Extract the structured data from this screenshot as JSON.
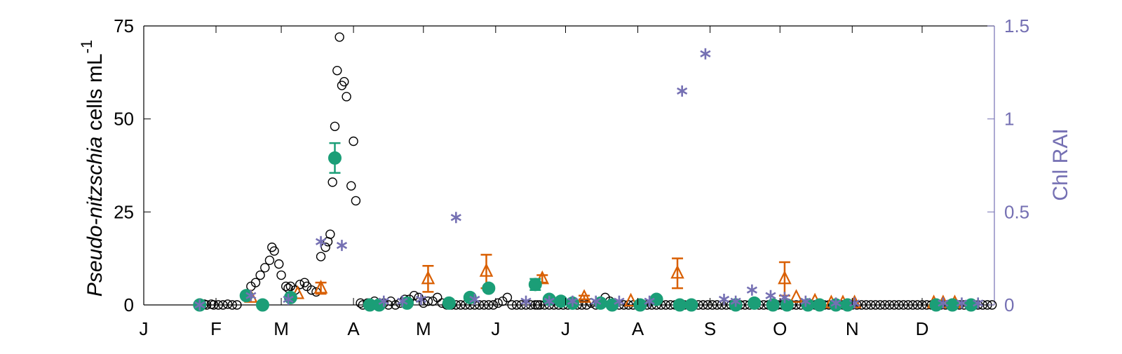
{
  "chart_data": {
    "type": "scatter",
    "title": "",
    "x_tick_labels": [
      "J",
      "F",
      "M",
      "A",
      "M",
      "J",
      "J",
      "A",
      "S",
      "O",
      "N",
      "D"
    ],
    "ylabel_left_italic": "Pseudo-nitzschia",
    "ylabel_left_rest": " cells mL",
    "ylabel_left_superscript": "-1",
    "ylabel_right": "Chl RAI",
    "y_left": {
      "lim": [
        0,
        75
      ],
      "ticks": [
        0,
        25,
        50,
        75
      ],
      "tick_labels": [
        "0",
        "25",
        "50",
        "75"
      ]
    },
    "y_right": {
      "lim": [
        0,
        1.5
      ],
      "ticks": [
        0,
        0.5,
        1,
        1.5
      ],
      "tick_labels": [
        "0",
        "0.5",
        "1",
        "1.5"
      ]
    },
    "x_lim_day_of_year": [
      1,
      366
    ],
    "grid": false,
    "colors": {
      "open_circles": "#000000",
      "triangles": "#d95f02",
      "filled_circles": "#1b9e77",
      "asterisks": "#7570b3",
      "axis_right": "#7570b3",
      "axis_left": "#000000"
    },
    "series": [
      {
        "marker": "open-circle",
        "axis": "left",
        "points": [
          [
            25,
            0.5
          ],
          [
            27,
            0.2
          ],
          [
            28,
            0
          ],
          [
            30,
            0.2
          ],
          [
            31,
            0
          ],
          [
            33,
            0
          ],
          [
            35,
            0
          ],
          [
            37,
            0.2
          ],
          [
            39,
            0
          ],
          [
            41,
            0
          ],
          [
            45,
            3
          ],
          [
            47,
            5
          ],
          [
            49,
            6
          ],
          [
            51,
            8
          ],
          [
            53,
            10
          ],
          [
            55,
            12
          ],
          [
            56,
            15.5
          ],
          [
            57,
            14.5
          ],
          [
            59,
            11
          ],
          [
            60,
            8
          ],
          [
            62,
            5
          ],
          [
            63,
            4.5
          ],
          [
            64,
            5
          ],
          [
            66,
            4
          ],
          [
            68,
            5.5
          ],
          [
            70,
            6
          ],
          [
            71,
            5
          ],
          [
            73,
            4
          ],
          [
            75,
            3.5
          ],
          [
            77,
            13
          ],
          [
            79,
            15.5
          ],
          [
            80,
            17
          ],
          [
            81,
            19
          ],
          [
            82,
            33
          ],
          [
            83,
            48
          ],
          [
            84,
            63
          ],
          [
            85,
            72
          ],
          [
            86,
            59
          ],
          [
            87,
            60
          ],
          [
            88,
            56
          ],
          [
            90,
            32
          ],
          [
            91,
            44
          ],
          [
            92,
            28
          ],
          [
            94,
            0.5
          ],
          [
            95,
            0
          ],
          [
            97,
            0.5
          ],
          [
            99,
            0
          ],
          [
            100,
            1
          ],
          [
            102,
            0
          ],
          [
            104,
            0.5
          ],
          [
            106,
            0
          ],
          [
            107,
            1
          ],
          [
            109,
            0
          ],
          [
            111,
            0.5
          ],
          [
            113,
            1.5
          ],
          [
            115,
            1.5
          ],
          [
            117,
            2.5
          ],
          [
            119,
            2
          ],
          [
            121,
            0.5
          ],
          [
            123,
            1
          ],
          [
            125,
            1
          ],
          [
            127,
            2
          ],
          [
            129,
            0.5
          ],
          [
            131,
            0
          ],
          [
            133,
            0
          ],
          [
            135,
            0
          ],
          [
            137,
            0
          ],
          [
            139,
            0
          ],
          [
            141,
            0
          ],
          [
            143,
            0
          ],
          [
            145,
            0
          ],
          [
            147,
            0
          ],
          [
            149,
            0
          ],
          [
            151,
            0
          ],
          [
            153,
            0.5
          ],
          [
            155,
            1
          ],
          [
            157,
            2
          ],
          [
            159,
            0
          ],
          [
            161,
            0
          ],
          [
            163,
            0
          ],
          [
            165,
            0
          ],
          [
            167,
            0
          ],
          [
            169,
            0
          ],
          [
            170,
            0
          ],
          [
            171,
            0
          ],
          [
            173,
            0
          ],
          [
            175,
            0
          ],
          [
            177,
            0
          ],
          [
            179,
            0
          ],
          [
            181,
            0
          ],
          [
            183,
            0
          ],
          [
            185,
            0
          ],
          [
            187,
            0
          ],
          [
            189,
            0
          ],
          [
            191,
            0
          ],
          [
            193,
            0.5
          ],
          [
            195,
            0
          ],
          [
            197,
            1
          ],
          [
            199,
            2
          ],
          [
            201,
            1
          ],
          [
            203,
            0.5
          ],
          [
            205,
            0
          ],
          [
            207,
            0
          ],
          [
            209,
            0
          ],
          [
            211,
            0
          ],
          [
            213,
            0
          ],
          [
            215,
            0
          ],
          [
            217,
            0
          ],
          [
            219,
            0
          ],
          [
            221,
            0
          ],
          [
            223,
            0
          ],
          [
            225,
            0
          ],
          [
            227,
            0
          ],
          [
            229,
            0
          ],
          [
            231,
            0
          ],
          [
            233,
            0
          ],
          [
            235,
            0
          ],
          [
            237,
            0
          ],
          [
            239,
            0
          ],
          [
            241,
            0
          ],
          [
            243,
            0
          ],
          [
            245,
            0
          ],
          [
            247,
            0
          ],
          [
            249,
            0
          ],
          [
            251,
            0
          ],
          [
            253,
            0
          ],
          [
            255,
            0
          ],
          [
            257,
            0
          ],
          [
            259,
            0
          ],
          [
            261,
            0
          ],
          [
            263,
            0
          ],
          [
            265,
            0
          ],
          [
            267,
            0
          ],
          [
            269,
            0
          ],
          [
            271,
            0
          ],
          [
            273,
            0
          ],
          [
            275,
            0
          ],
          [
            277,
            0
          ],
          [
            279,
            0
          ],
          [
            281,
            0
          ],
          [
            283,
            0
          ],
          [
            285,
            0
          ],
          [
            287,
            0
          ],
          [
            289,
            0
          ],
          [
            291,
            0
          ],
          [
            293,
            0
          ],
          [
            295,
            0
          ],
          [
            297,
            0
          ],
          [
            299,
            0
          ],
          [
            301,
            0
          ],
          [
            303,
            0
          ],
          [
            305,
            0
          ],
          [
            307,
            0
          ],
          [
            309,
            0
          ],
          [
            311,
            0
          ],
          [
            313,
            0
          ],
          [
            315,
            0
          ],
          [
            317,
            0
          ],
          [
            319,
            0
          ],
          [
            321,
            0
          ],
          [
            323,
            0
          ],
          [
            325,
            0
          ],
          [
            327,
            0
          ],
          [
            329,
            0
          ],
          [
            331,
            0
          ],
          [
            333,
            0
          ],
          [
            335,
            0
          ],
          [
            337,
            0
          ],
          [
            339,
            0
          ],
          [
            341,
            0
          ],
          [
            343,
            0
          ],
          [
            345,
            0
          ],
          [
            347,
            0
          ],
          [
            349,
            0
          ],
          [
            351,
            0
          ],
          [
            353,
            0
          ],
          [
            355,
            0
          ],
          [
            357,
            0
          ],
          [
            359,
            0
          ],
          [
            361,
            0
          ],
          [
            363,
            0
          ],
          [
            365,
            0
          ]
        ]
      },
      {
        "marker": "triangle",
        "axis": "left",
        "points": [
          [
            47,
            2,
            0
          ],
          [
            67,
            3,
            0
          ],
          [
            77,
            4.5,
            1.5
          ],
          [
            123,
            7,
            3.5
          ],
          [
            148,
            9,
            4.5
          ],
          [
            172,
            7,
            1
          ],
          [
            190,
            2,
            0.5
          ],
          [
            210,
            1,
            0
          ],
          [
            230,
            8.5,
            4
          ],
          [
            276,
            7,
            4.5
          ],
          [
            281,
            2,
            0
          ],
          [
            289,
            1,
            0
          ],
          [
            296,
            0.5,
            0
          ],
          [
            301,
            0.5,
            0
          ],
          [
            306,
            0.5,
            0
          ],
          [
            340,
            0.5,
            0
          ],
          [
            344,
            0.5,
            0
          ],
          [
            349,
            0.5,
            0
          ]
        ]
      },
      {
        "marker": "filled-circle",
        "axis": "left",
        "points": [
          [
            25,
            0,
            0
          ],
          [
            45,
            2.5,
            0
          ],
          [
            52,
            0,
            0
          ],
          [
            64,
            2,
            0
          ],
          [
            83,
            39.5,
            4
          ],
          [
            98,
            0,
            0
          ],
          [
            102,
            0,
            0
          ],
          [
            114,
            0.5,
            0
          ],
          [
            132,
            0.5,
            0
          ],
          [
            141,
            2,
            0
          ],
          [
            149,
            4.5,
            0
          ],
          [
            169,
            5.5,
            1.5
          ],
          [
            175,
            1.5,
            0
          ],
          [
            180,
            1,
            0
          ],
          [
            185,
            0.5,
            0
          ],
          [
            197,
            0.5,
            0
          ],
          [
            202,
            0,
            0
          ],
          [
            214,
            0,
            0
          ],
          [
            221,
            1.5,
            0
          ],
          [
            231,
            0,
            0
          ],
          [
            236,
            0,
            0
          ],
          [
            255,
            0,
            0
          ],
          [
            263,
            0.5,
            0
          ],
          [
            271,
            0,
            0
          ],
          [
            277,
            0,
            0
          ],
          [
            286,
            0,
            0
          ],
          [
            291,
            0,
            0
          ],
          [
            298,
            0,
            0
          ],
          [
            303,
            0,
            0
          ],
          [
            341,
            0,
            0
          ],
          [
            348,
            0,
            0
          ],
          [
            356,
            0,
            0
          ]
        ]
      },
      {
        "marker": "asterisk",
        "axis": "right",
        "points": [
          [
            25,
            0
          ],
          [
            47,
            0.05
          ],
          [
            63,
            0.03
          ],
          [
            77,
            0.34
          ],
          [
            86,
            0.32
          ],
          [
            104,
            0.02
          ],
          [
            112,
            0.02
          ],
          [
            120,
            0.03
          ],
          [
            135,
            0.47
          ],
          [
            143,
            0.03
          ],
          [
            165,
            0.02
          ],
          [
            175,
            0.02
          ],
          [
            185,
            0.02
          ],
          [
            195,
            0.02
          ],
          [
            205,
            0.02
          ],
          [
            218,
            0.02
          ],
          [
            232,
            1.15
          ],
          [
            242,
            1.35
          ],
          [
            250,
            0.03
          ],
          [
            255,
            0.02
          ],
          [
            262,
            0.08
          ],
          [
            270,
            0.05
          ],
          [
            276,
            0.04
          ],
          [
            285,
            0.02
          ],
          [
            298,
            0.01
          ],
          [
            306,
            0.01
          ],
          [
            344,
            0.01
          ],
          [
            352,
            0.01
          ],
          [
            359,
            0.01
          ]
        ]
      }
    ]
  }
}
